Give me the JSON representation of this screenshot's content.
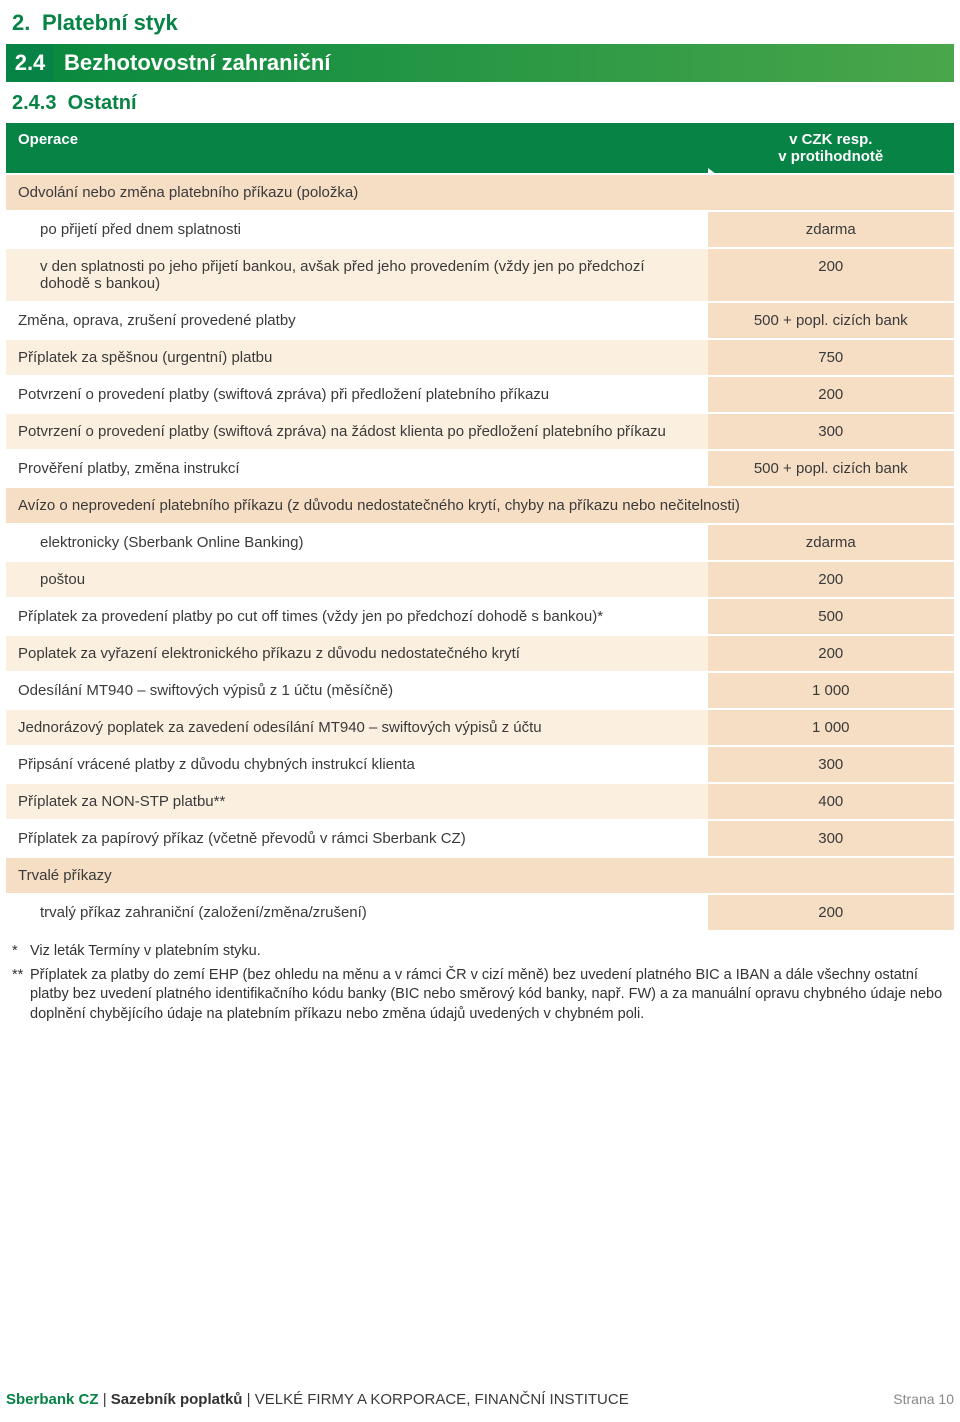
{
  "colors": {
    "green": "#068345",
    "gradient_start": "#0a8a3f",
    "gradient_end": "#4aa64a",
    "peach_dark": "#f5dec4",
    "peach_light": "#fbefe0",
    "text": "#3a3a3a",
    "muted": "#888888"
  },
  "h1": {
    "num": "2.",
    "title": "Platební styk"
  },
  "h2": {
    "num": "2.4",
    "title": "Bezhotovostní zahraniční"
  },
  "h3": {
    "num": "2.4.3",
    "title": "Ostatní"
  },
  "table": {
    "columns": {
      "op": "Operace",
      "val_l1": "v CZK resp.",
      "val_l2": "v protihodnotě"
    },
    "rows": [
      {
        "kind": "head",
        "op": "Odvolání nebo změna platebního příkazu (položka)",
        "val": ""
      },
      {
        "kind": "row",
        "indent": 1,
        "op": "po přijetí před dnem splatnosti",
        "val": "zdarma"
      },
      {
        "kind": "rowalt",
        "indent": 1,
        "op": "v den splatnosti po jeho přijetí bankou, avšak před jeho provedením (vždy jen po předchozí dohodě s bankou)",
        "val": "200"
      },
      {
        "kind": "row",
        "op": "Změna, oprava, zrušení provedené platby",
        "val": "500 + popl. cizích bank"
      },
      {
        "kind": "rowalt",
        "op": "Příplatek za spěšnou (urgentní) platbu",
        "val": "750"
      },
      {
        "kind": "row",
        "op": "Potvrzení o provedení platby (swiftová zpráva) při předložení platebního příkazu",
        "val": "200"
      },
      {
        "kind": "rowalt",
        "op": "Potvrzení o provedení platby (swiftová zpráva) na žádost klienta po předložení platebního příkazu",
        "val": "300"
      },
      {
        "kind": "row",
        "op": "Prověření platby, změna instrukcí",
        "val": "500 + popl. cizích bank"
      },
      {
        "kind": "head",
        "op": "Avízo o neprovedení platebního příkazu (z důvodu nedostatečného krytí, chyby na příkazu nebo nečitelnosti)",
        "val": ""
      },
      {
        "kind": "row",
        "indent": 1,
        "op": "elektronicky (Sberbank Online Banking)",
        "val": "zdarma"
      },
      {
        "kind": "rowalt",
        "indent": 1,
        "op": "poštou",
        "val": "200"
      },
      {
        "kind": "row",
        "op": "Příplatek za provedení platby po cut off times (vždy jen po předchozí dohodě s bankou)*",
        "val": "500"
      },
      {
        "kind": "rowalt",
        "op": "Poplatek za vyřazení elektronického příkazu z důvodu nedostatečného krytí",
        "val": "200"
      },
      {
        "kind": "row",
        "op": "Odesílání MT940 – swiftových výpisů z 1 účtu (měsíčně)",
        "val": "1 000"
      },
      {
        "kind": "rowalt",
        "op": "Jednorázový poplatek za zavedení odesílání MT940 – swiftových výpisů z účtu",
        "val": "1 000"
      },
      {
        "kind": "row",
        "op": "Připsání vrácené platby z důvodu chybných instrukcí klienta",
        "val": "300"
      },
      {
        "kind": "rowalt",
        "op": "Příplatek za NON-STP platbu**",
        "val": "400"
      },
      {
        "kind": "row",
        "op": "Příplatek za papírový příkaz (včetně převodů v rámci Sberbank CZ)",
        "val": "300"
      },
      {
        "kind": "head",
        "op": "Trvalé příkazy",
        "val": ""
      },
      {
        "kind": "row",
        "indent": 1,
        "op": "trvalý příkaz zahraniční (založení/změna/zrušení)",
        "val": "200"
      }
    ]
  },
  "footnotes": [
    {
      "mark": "*",
      "text": "Viz leták Termíny v platebním styku."
    },
    {
      "mark": "**",
      "text": "Příplatek za platby do zemí EHP (bez ohledu na měnu a v rámci ČR v cizí měně) bez uvedení platného BIC a IBAN a dále všechny ostatní platby bez uvedení platného identifikačního kódu banky (BIC nebo směrový kód banky, např. FW) a za manuální opravu chybného údaje nebo doplnění chybějícího údaje na platebním příkazu nebo změna údajů uvedených v chybném poli."
    }
  ],
  "footer": {
    "bank": "Sberbank CZ",
    "mid": "Sazebník poplatků",
    "tail": "VELKÉ FIRMY A KORPORACE, FINANČNÍ INSTITUCE",
    "page_label": "Strana",
    "page_num": "10"
  }
}
